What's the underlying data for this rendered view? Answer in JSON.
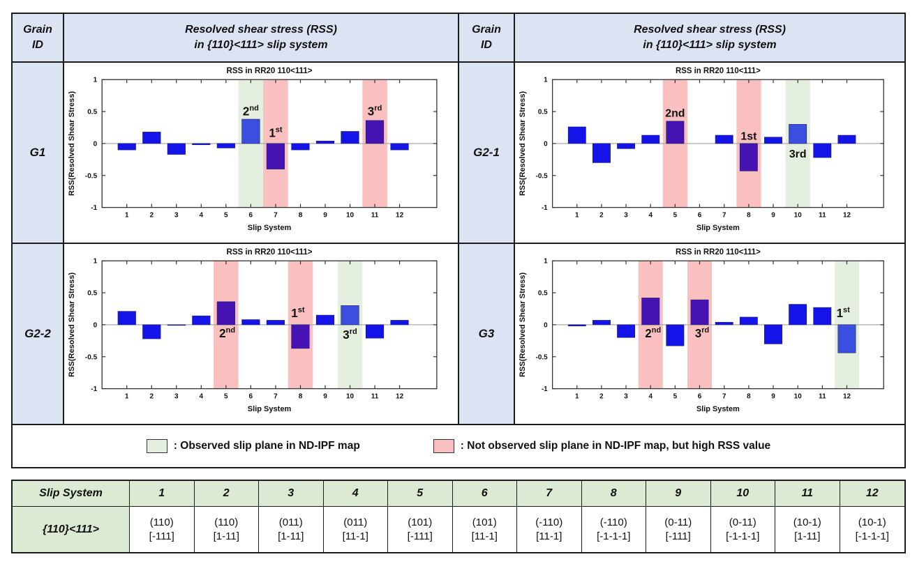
{
  "header": {
    "grain_id_label": "Grain\nID",
    "rss_title": "Resolved shear stress (RSS)\nin {110}<111> slip system"
  },
  "legend": {
    "observed": ": Observed slip plane in ND-IPF map",
    "not_observed": ": Not observed slip plane in ND-IPF map, but high RSS value"
  },
  "colors": {
    "header_bg": "#dce4f4",
    "table_green": "#dcead4",
    "band_observed": "#e4efdf",
    "band_not_observed": "#fac0c0",
    "bar_default": "#1414e8",
    "bar_dark": "#4413b2",
    "bar_light": "#3a4fe0",
    "axis": "#333333",
    "zero_line": "#aaaaaa"
  },
  "chart_data": [
    {
      "type": "bar",
      "grain": "G1",
      "title": "RSS in RR20 110<111>",
      "xlabel": "Slip System",
      "ylabel": "RSS(Resolved Shear Stress)",
      "ylim": [
        -1,
        1
      ],
      "yticks": [
        1,
        0.5,
        0,
        -0.5,
        -1
      ],
      "categories": [
        1,
        2,
        3,
        4,
        5,
        6,
        7,
        8,
        9,
        10,
        11,
        12
      ],
      "values": [
        -0.1,
        0.18,
        -0.17,
        -0.02,
        -0.07,
        0.38,
        -0.4,
        -0.1,
        0.04,
        0.19,
        0.36,
        -0.1
      ],
      "bar_colors": {
        "6": "light",
        "7": "dark",
        "11": "dark"
      },
      "highlight_bands": [
        {
          "slip": 6,
          "kind": "observed"
        },
        {
          "slip": 7,
          "kind": "not_observed"
        },
        {
          "slip": 11,
          "kind": "not_observed"
        }
      ],
      "rank_labels": [
        {
          "slip": 6,
          "base": "2",
          "sup": "nd",
          "y": 0.44
        },
        {
          "slip": 7,
          "base": "1",
          "sup": "st",
          "y": 0.1
        },
        {
          "slip": 11,
          "base": "3",
          "sup": "rd",
          "y": 0.44
        }
      ]
    },
    {
      "type": "bar",
      "grain": "G2-1",
      "title": "RSS in RR20 110<111>",
      "xlabel": "Slip System",
      "ylabel": "RSS(Resolved Shear Stress)",
      "ylim": [
        -1,
        1
      ],
      "yticks": [
        1,
        0.5,
        0,
        -0.5,
        -1
      ],
      "categories": [
        1,
        2,
        3,
        4,
        5,
        6,
        7,
        8,
        9,
        10,
        11,
        12
      ],
      "values": [
        0.26,
        -0.3,
        -0.08,
        0.13,
        0.35,
        0.0,
        0.13,
        -0.43,
        0.1,
        0.3,
        -0.22,
        0.13
      ],
      "bar_colors": {
        "5": "dark",
        "8": "dark",
        "10": "light"
      },
      "highlight_bands": [
        {
          "slip": 5,
          "kind": "not_observed"
        },
        {
          "slip": 8,
          "kind": "not_observed"
        },
        {
          "slip": 10,
          "kind": "observed"
        }
      ],
      "rank_labels": [
        {
          "slip": 5,
          "base": "2nd",
          "sup": "",
          "y": 0.42
        },
        {
          "slip": 8,
          "base": "1st",
          "sup": "",
          "y": 0.06
        },
        {
          "slip": 10,
          "base": "3rd",
          "sup": "",
          "y": -0.22
        }
      ]
    },
    {
      "type": "bar",
      "grain": "G2-2",
      "title": "RSS in RR20 110<111>",
      "xlabel": "Slip System",
      "ylabel": "RSS(Resolved Shear Stress)",
      "ylim": [
        -1,
        1
      ],
      "yticks": [
        1,
        0.5,
        0,
        -0.5,
        -1
      ],
      "categories": [
        1,
        2,
        3,
        4,
        5,
        6,
        7,
        8,
        9,
        10,
        11,
        12
      ],
      "values": [
        0.21,
        -0.22,
        -0.01,
        0.14,
        0.36,
        0.08,
        0.07,
        -0.37,
        0.15,
        0.3,
        -0.21,
        0.07
      ],
      "bar_colors": {
        "5": "dark",
        "8": "dark",
        "10": "light"
      },
      "highlight_bands": [
        {
          "slip": 5,
          "kind": "not_observed"
        },
        {
          "slip": 8,
          "kind": "not_observed"
        },
        {
          "slip": 10,
          "kind": "observed"
        }
      ],
      "rank_labels": [
        {
          "slip": 5.05,
          "base": "2",
          "sup": "nd",
          "y": -0.2
        },
        {
          "slip": 7.9,
          "base": "1",
          "sup": "st",
          "y": 0.12
        },
        {
          "slip": 10,
          "base": "3",
          "sup": "rd",
          "y": -0.22
        }
      ]
    },
    {
      "type": "bar",
      "grain": "G3",
      "title": "RSS in RR20 110<111>",
      "xlabel": "Slip System",
      "ylabel": "RSS(Resolved Shear Stress)",
      "ylim": [
        -1,
        1
      ],
      "yticks": [
        1,
        0.5,
        0,
        -0.5,
        -1
      ],
      "categories": [
        1,
        2,
        3,
        4,
        5,
        6,
        7,
        8,
        9,
        10,
        11,
        12
      ],
      "values": [
        -0.02,
        0.07,
        -0.2,
        0.42,
        -0.33,
        0.39,
        0.04,
        0.12,
        -0.3,
        0.32,
        0.27,
        -0.44
      ],
      "bar_colors": {
        "4": "dark",
        "6": "dark",
        "12": "light"
      },
      "highlight_bands": [
        {
          "slip": 4,
          "kind": "not_observed"
        },
        {
          "slip": 6,
          "kind": "not_observed"
        },
        {
          "slip": 12,
          "kind": "observed"
        }
      ],
      "rank_labels": [
        {
          "slip": 4.1,
          "base": "2",
          "sup": "nd",
          "y": -0.2
        },
        {
          "slip": 6.1,
          "base": "3",
          "sup": "rd",
          "y": -0.2
        },
        {
          "slip": 11.85,
          "base": "1",
          "sup": "st",
          "y": 0.12
        }
      ]
    }
  ],
  "slip_table": {
    "corner": "Slip System",
    "row_label": "{110}<111>",
    "columns": [
      "1",
      "2",
      "3",
      "4",
      "5",
      "6",
      "7",
      "8",
      "9",
      "10",
      "11",
      "12"
    ],
    "cells": [
      {
        "plane": "(110)",
        "direction": "[-111]"
      },
      {
        "plane": "(110)",
        "direction": "[1-11]"
      },
      {
        "plane": "(011)",
        "direction": "[1-11]"
      },
      {
        "plane": "(011)",
        "direction": "[11-1]"
      },
      {
        "plane": "(101)",
        "direction": "[-111]"
      },
      {
        "plane": "(101)",
        "direction": "[11-1]"
      },
      {
        "plane": "(-110)",
        "direction": "[11-1]"
      },
      {
        "plane": "(-110)",
        "direction": "[-1-1-1]"
      },
      {
        "plane": "(0-11)",
        "direction": "[-111]"
      },
      {
        "plane": "(0-11)",
        "direction": "[-1-1-1]"
      },
      {
        "plane": "(10-1)",
        "direction": "[1-11]"
      },
      {
        "plane": "(10-1)",
        "direction": "[-1-1-1]"
      }
    ]
  }
}
